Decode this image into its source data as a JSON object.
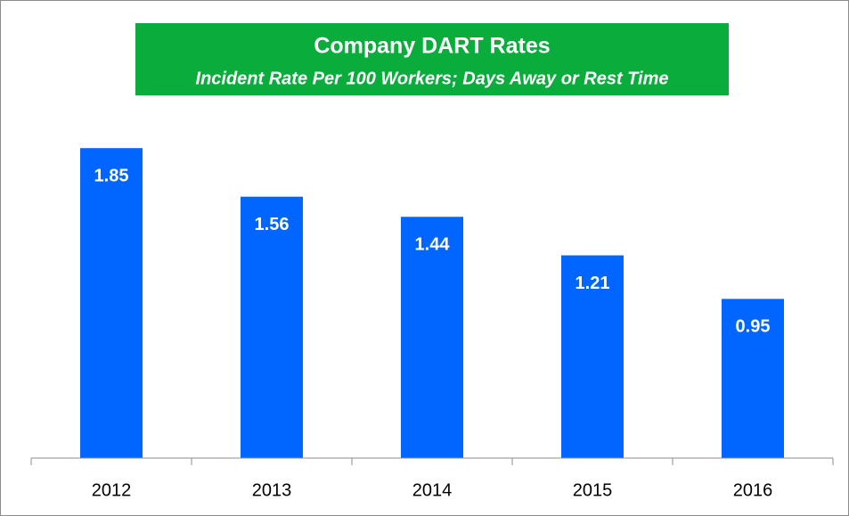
{
  "chart_data": {
    "type": "bar",
    "title": "Company DART Rates",
    "subtitle": "Incident Rate Per 100 Workers; Days Away or Rest Time",
    "categories": [
      "2012",
      "2013",
      "2014",
      "2015",
      "2016"
    ],
    "values": [
      1.85,
      1.56,
      1.44,
      1.21,
      0.95
    ],
    "color": "#0066ff",
    "ylim": [
      0,
      2
    ]
  }
}
